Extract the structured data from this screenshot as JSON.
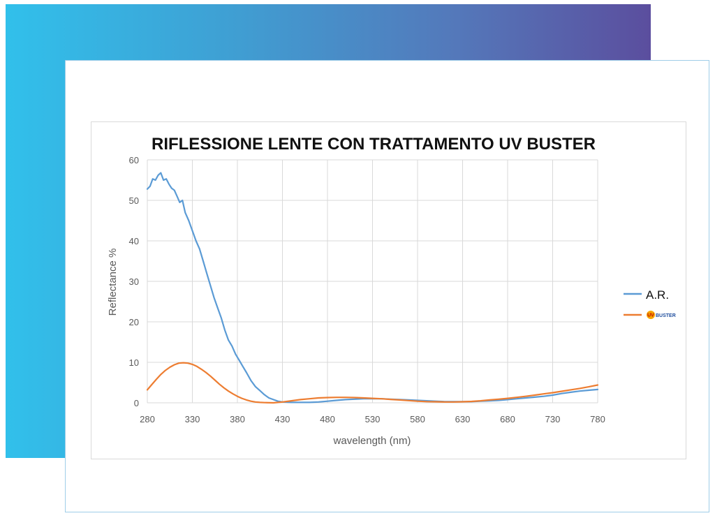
{
  "chart_data": {
    "type": "line",
    "title": "RIFLESSIONE LENTE CON TRATTAMENTO UV BUSTER",
    "xlabel": "wavelength (nm)",
    "ylabel": "Reflectance %",
    "xlim": [
      280,
      780
    ],
    "ylim": [
      0,
      60
    ],
    "x_ticks": [
      280,
      330,
      380,
      430,
      480,
      530,
      580,
      630,
      680,
      730,
      780
    ],
    "y_ticks": [
      0,
      10,
      20,
      30,
      40,
      50,
      60
    ],
    "grid": true,
    "legend_position": "right",
    "series": [
      {
        "name": "A.R.",
        "color": "#5b9bd5",
        "x": [
          280,
          283,
          286,
          289,
          292,
          295,
          298,
          301,
          304,
          307,
          310,
          313,
          316,
          319,
          322,
          326,
          330,
          334,
          338,
          342,
          346,
          350,
          354,
          358,
          362,
          366,
          370,
          374,
          378,
          382,
          386,
          390,
          395,
          400,
          405,
          410,
          415,
          420,
          425,
          430,
          440,
          450,
          460,
          470,
          480,
          490,
          500,
          510,
          520,
          530,
          540,
          550,
          560,
          570,
          580,
          590,
          600,
          610,
          620,
          630,
          640,
          650,
          660,
          670,
          680,
          690,
          700,
          710,
          720,
          730,
          740,
          750,
          760,
          770,
          780
        ],
        "values": [
          52.8,
          53.5,
          55.3,
          55.0,
          56.2,
          56.8,
          55.0,
          55.3,
          54.0,
          53.0,
          52.5,
          51.0,
          49.5,
          50.0,
          47.0,
          45.0,
          42.5,
          40.0,
          38.0,
          35.0,
          32.0,
          29.0,
          26.0,
          23.5,
          21.0,
          18.0,
          15.5,
          14.0,
          12.0,
          10.5,
          9.0,
          7.5,
          5.5,
          4.0,
          3.0,
          2.0,
          1.2,
          0.8,
          0.4,
          0.2,
          0.1,
          0.1,
          0.1,
          0.2,
          0.4,
          0.6,
          0.8,
          0.9,
          1.0,
          1.0,
          1.0,
          0.9,
          0.8,
          0.7,
          0.6,
          0.5,
          0.4,
          0.3,
          0.3,
          0.3,
          0.3,
          0.4,
          0.5,
          0.6,
          0.8,
          1.0,
          1.2,
          1.4,
          1.6,
          1.9,
          2.3,
          2.6,
          2.9,
          3.1,
          3.3
        ]
      },
      {
        "name": "UV BUSTER",
        "color": "#ed7d31",
        "x": [
          280,
          285,
          290,
          295,
          300,
          305,
          310,
          315,
          320,
          325,
          330,
          335,
          340,
          345,
          350,
          355,
          360,
          365,
          370,
          375,
          380,
          385,
          390,
          395,
          400,
          405,
          410,
          420,
          430,
          440,
          450,
          460,
          470,
          480,
          490,
          500,
          510,
          520,
          530,
          540,
          550,
          560,
          570,
          580,
          590,
          600,
          610,
          620,
          630,
          640,
          650,
          660,
          670,
          680,
          690,
          700,
          710,
          720,
          730,
          740,
          750,
          760,
          770,
          780
        ],
        "values": [
          3.2,
          4.5,
          5.8,
          7.0,
          8.0,
          8.8,
          9.4,
          9.8,
          9.9,
          9.8,
          9.5,
          9.0,
          8.3,
          7.5,
          6.6,
          5.6,
          4.6,
          3.7,
          2.9,
          2.2,
          1.6,
          1.1,
          0.7,
          0.4,
          0.2,
          0.1,
          0.05,
          0.0,
          0.2,
          0.5,
          0.8,
          1.0,
          1.2,
          1.3,
          1.35,
          1.35,
          1.3,
          1.2,
          1.1,
          1.0,
          0.85,
          0.7,
          0.55,
          0.4,
          0.3,
          0.25,
          0.2,
          0.2,
          0.25,
          0.35,
          0.5,
          0.7,
          0.9,
          1.1,
          1.35,
          1.6,
          1.9,
          2.2,
          2.5,
          2.85,
          3.2,
          3.55,
          3.95,
          4.4
        ]
      }
    ]
  },
  "legend": {
    "items": [
      {
        "label": "A.R.",
        "color": "#5b9bd5"
      },
      {
        "label": "BUSTER",
        "badge": "UV",
        "badge_color": "#f7a600",
        "text_color": "#1f4e9e",
        "color": "#ed7d31"
      }
    ]
  }
}
